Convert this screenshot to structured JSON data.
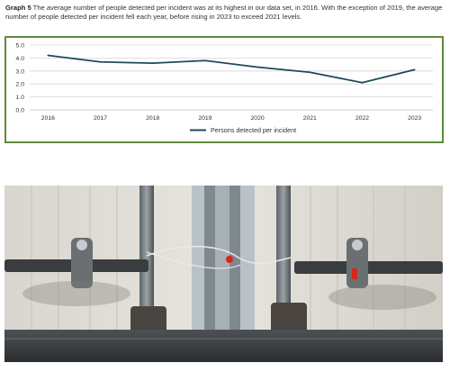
{
  "caption": {
    "label": "Graph 5",
    "text": " The average number of people detected per incident was at its highest in our data set, in 2016. With the exception of 2019, the average number of people detected per incident fell each year, before rising in 2023 to exceed 2021 levels."
  },
  "colors": {
    "line": "#1d4a5a",
    "border": "#5e8c3c",
    "grid": "#d6d6d6"
  },
  "chart_data": {
    "type": "line",
    "title": "",
    "xlabel": "",
    "ylabel": "",
    "x": [
      "2016",
      "2017",
      "2018",
      "2019",
      "2020",
      "2021",
      "2022",
      "2023"
    ],
    "series": [
      {
        "name": "Persons detected per incident",
        "values": [
          4.2,
          3.7,
          3.6,
          3.8,
          3.3,
          2.9,
          2.1,
          3.1
        ]
      }
    ],
    "ylim": [
      0,
      5
    ],
    "yticks": [
      "0.0",
      "1.0",
      "2.0",
      "3.0",
      "4.0",
      "5.0"
    ],
    "grid": true,
    "legend": "bottom-center"
  },
  "photo": {
    "description_icon": "truck-doors-photo"
  }
}
